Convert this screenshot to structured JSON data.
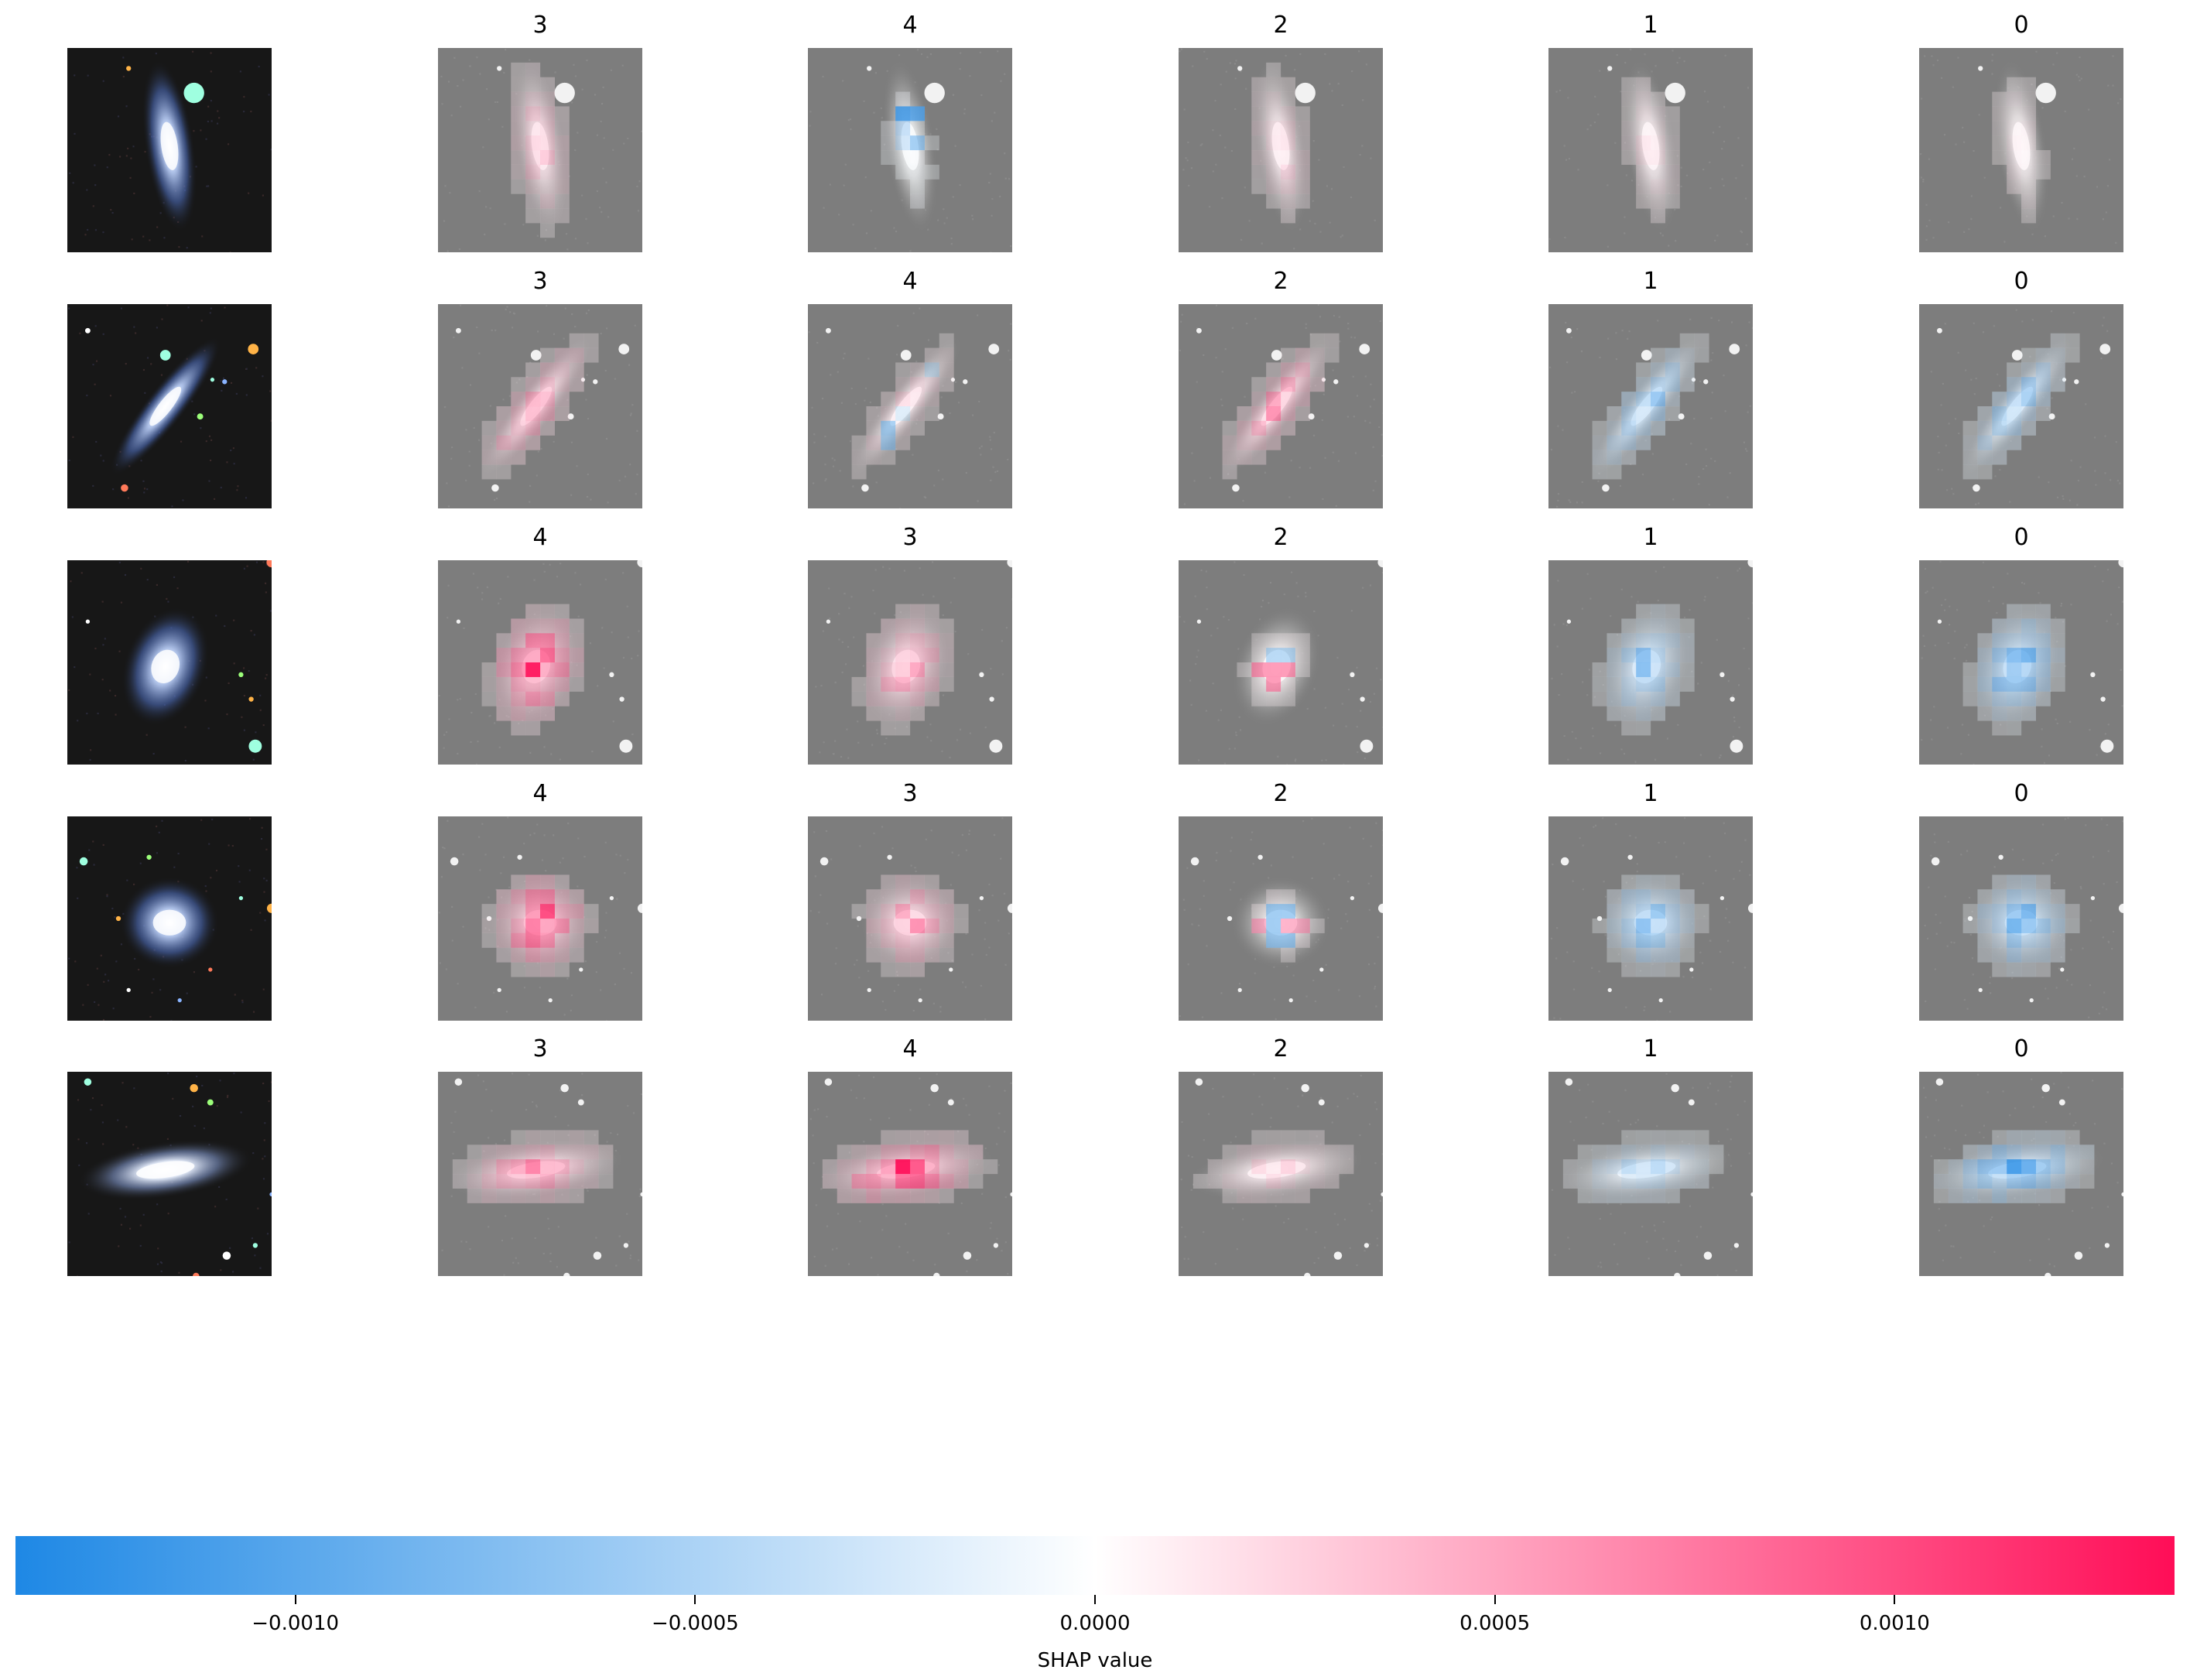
{
  "chart_data": {
    "type": "heatmap",
    "title": "",
    "rows": [
      {
        "labels": [
          "3",
          "4",
          "2",
          "1",
          "0"
        ],
        "galaxy": "edge-on spiral, vertical, bright star upper right"
      },
      {
        "labels": [
          "3",
          "4",
          "2",
          "1",
          "0"
        ],
        "galaxy": "inclined spiral, diagonal, field stars"
      },
      {
        "labels": [
          "4",
          "3",
          "2",
          "1",
          "0"
        ],
        "galaxy": "spiral with blue arms, bright compact source lower right"
      },
      {
        "labels": [
          "4",
          "3",
          "2",
          "1",
          "0"
        ],
        "galaxy": "face-on compact spiral, field stars"
      },
      {
        "labels": [
          "3",
          "4",
          "2",
          "1",
          "0"
        ],
        "galaxy": "inclined bright galaxy, horizontal"
      }
    ],
    "colorbar": {
      "label": "SHAP value",
      "range": [
        -0.00135,
        0.00135
      ],
      "ticks": [
        -0.001,
        -0.0005,
        0.0,
        0.0005,
        0.001
      ],
      "tick_labels": [
        "−0.0010",
        "−0.0005",
        "0.0000",
        "0.0005",
        "0.0010"
      ],
      "colors": {
        "negative": "#1e88e5",
        "zero": "#ffffff",
        "positive": "#ff0d57"
      }
    }
  }
}
